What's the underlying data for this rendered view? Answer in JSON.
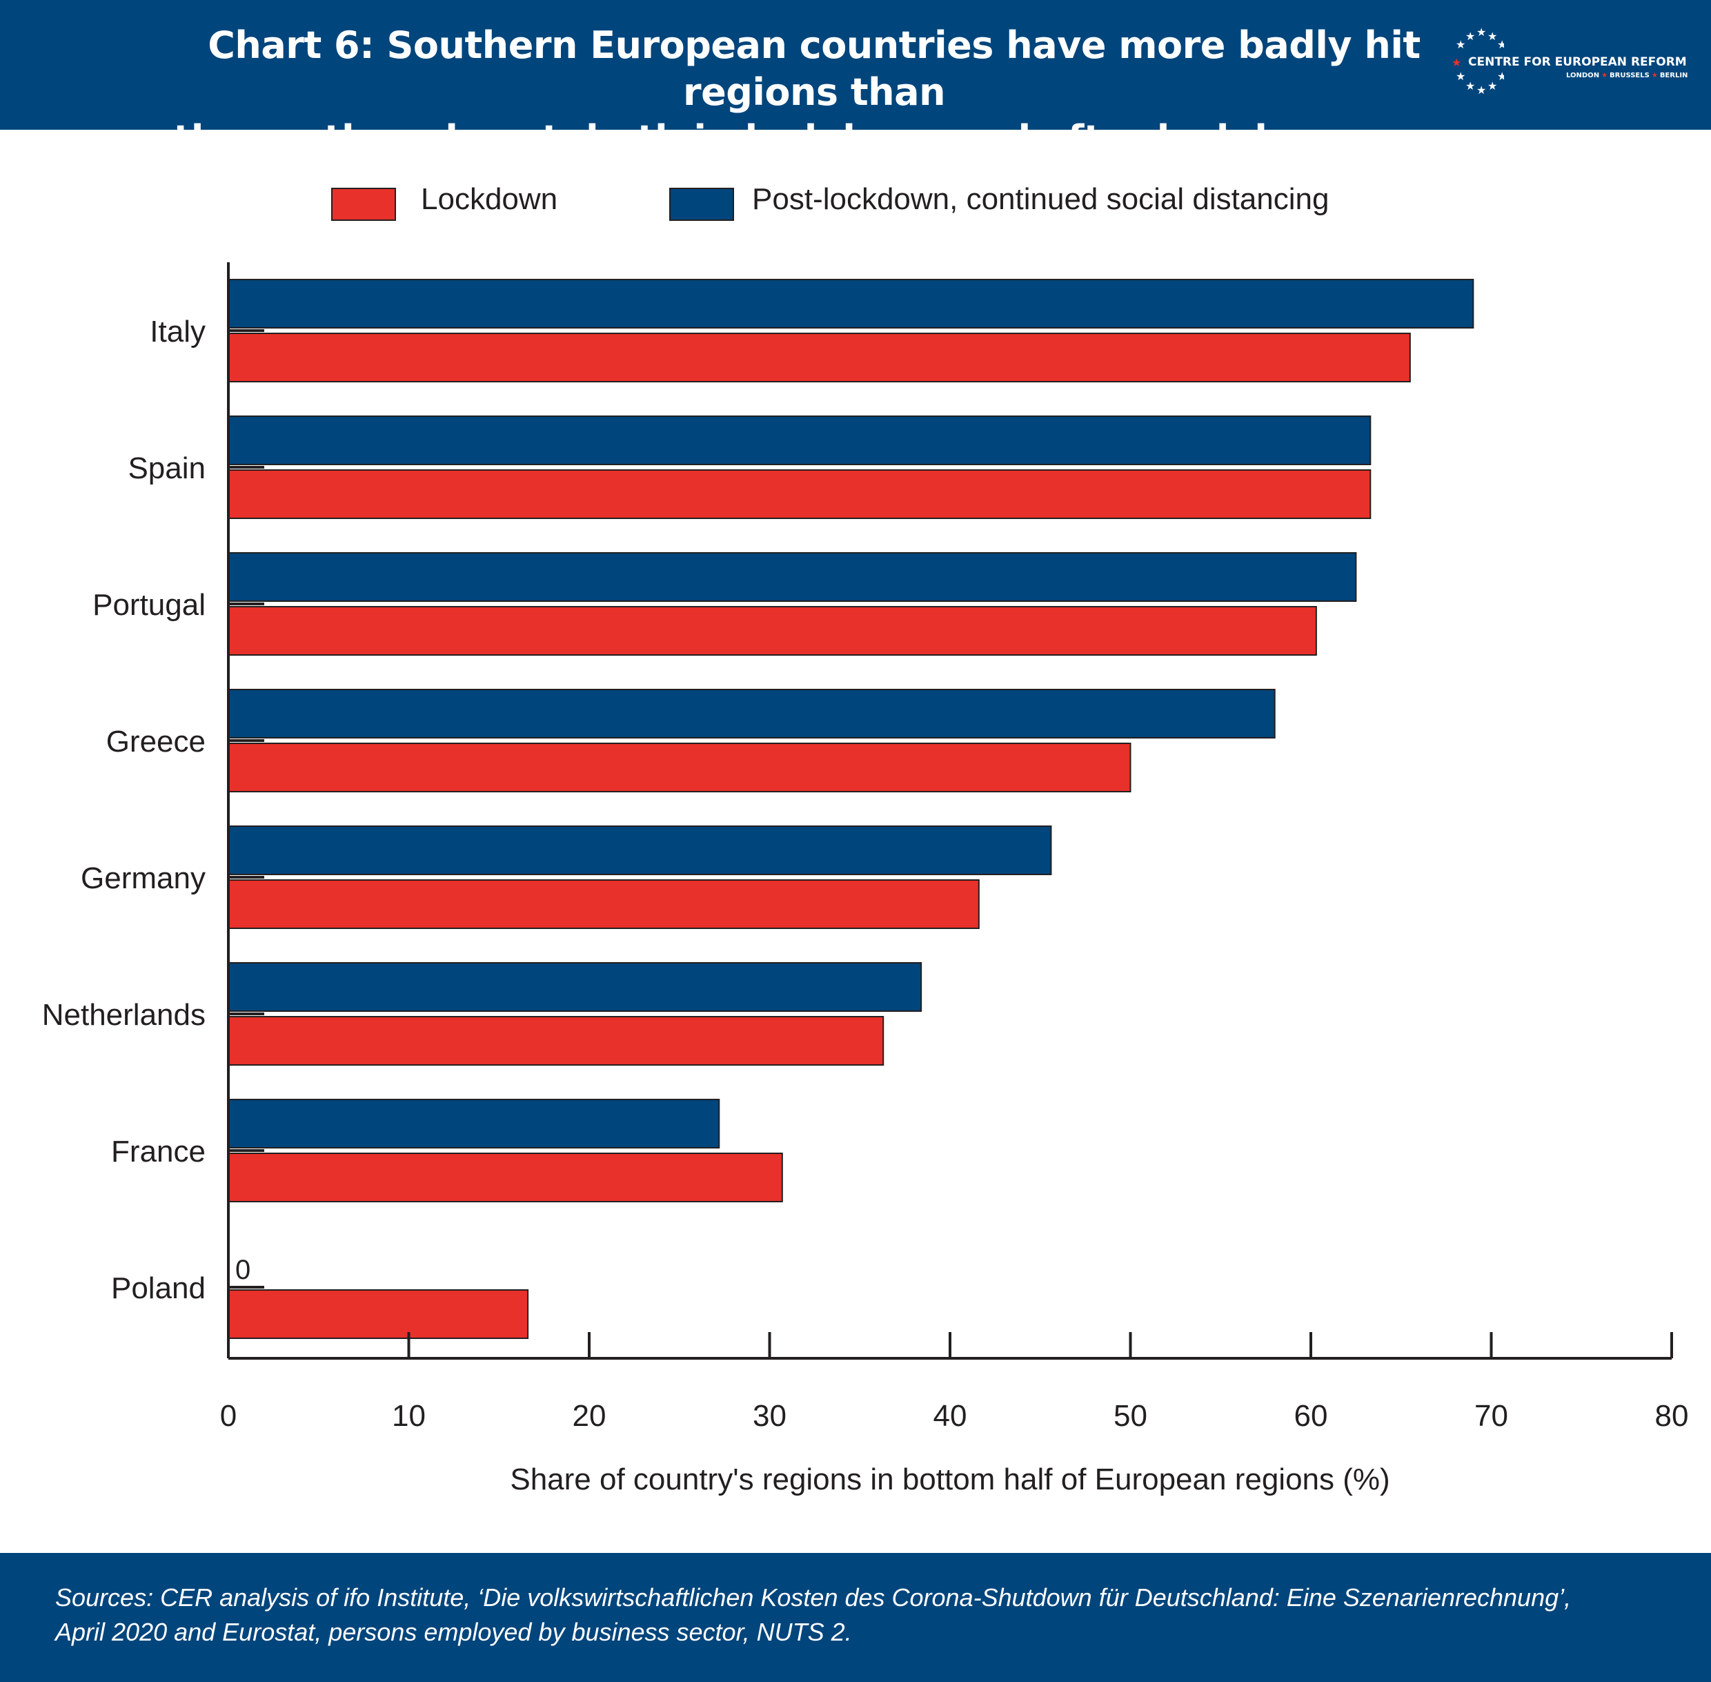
{
  "header": {
    "title": "Chart 6: Southern European countries have more badly hit regions than\nthe north and east, both in lockdown and after lockdowns are relaxed",
    "logo_name": "CENTRE FOR EUROPEAN REFORM",
    "logo_cities": [
      "LONDON",
      "BRUSSELS",
      "BERLIN"
    ],
    "logo_lettering": "CENTRE FOR EUROPEAN REFORM LONDON BRUSSELS BERLIN"
  },
  "colors": {
    "brand_blue": "#00457c",
    "lockdown_red": "#e8312a",
    "post_lockdown_blue": "#00457c",
    "axis": "#231f20"
  },
  "legend": {
    "lockdown": "Lockdown",
    "post_lockdown": "Post-lockdown, continued social distancing"
  },
  "chart_data": {
    "type": "bar",
    "orientation": "horizontal",
    "categories": [
      "Italy",
      "Spain",
      "Portugal",
      "Greece",
      "Germany",
      "Netherlands",
      "France",
      "Poland"
    ],
    "series": [
      {
        "name": "Post-lockdown, continued social distancing",
        "color": "#00457c",
        "values": [
          69,
          63.3,
          62.5,
          58,
          45.6,
          38.4,
          27.2,
          0
        ]
      },
      {
        "name": "Lockdown",
        "color": "#e8312a",
        "values": [
          65.5,
          63.3,
          60.3,
          50,
          41.6,
          36.3,
          30.7,
          16.6
        ]
      }
    ],
    "data_labels": [
      {
        "category": "Poland",
        "series": "Post-lockdown, continued social distancing",
        "text": "0"
      }
    ],
    "xlabel": "Share of country's regions in bottom half of European regions (%)",
    "xlim": [
      0,
      80
    ],
    "xticks": [
      "0",
      "10",
      "20",
      "30",
      "40",
      "50",
      "60",
      "70",
      "80"
    ],
    "grid": false,
    "legend_position": "top"
  },
  "footer": {
    "source": "Sources: CER analysis of ifo Institute, ‘Die volkswirtschaftlichen Kosten des Corona-Shutdown für Deutschland: Eine Szenarienrechnung’,\nApril 2020 and Eurostat, persons employed by business sector, NUTS 2."
  }
}
